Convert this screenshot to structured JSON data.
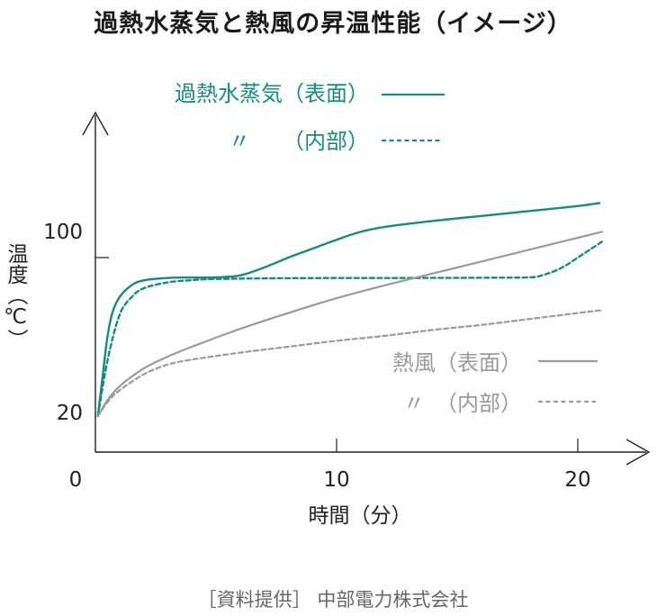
{
  "chart_data": {
    "type": "line",
    "title": "過熱水蒸気と熱風の昇温性能（イメージ）",
    "source": "［資料提供］ 中部電力株式会社",
    "xlabel": "時間（分）",
    "ylabel": "温度（℃）",
    "x_ticks": [
      "0",
      "10",
      "20"
    ],
    "y_ticks": [
      "20",
      "100"
    ],
    "xlim": [
      0,
      21
    ],
    "ylim": [
      16,
      138
    ],
    "colors": {
      "steam": "#188a80",
      "hot_air": "#9a9a9a",
      "axis": "#222222"
    },
    "series": [
      {
        "name": "過熱水蒸気（表面）",
        "style": "solid",
        "color": "#188a80",
        "points": [
          [
            0.1,
            20
          ],
          [
            0.3,
            40
          ],
          [
            0.5,
            60
          ],
          [
            0.7,
            72
          ],
          [
            1,
            80
          ],
          [
            1.5,
            86
          ],
          [
            2,
            88.5
          ],
          [
            3,
            89.7
          ],
          [
            4,
            89.9
          ],
          [
            5,
            90
          ],
          [
            6,
            91
          ],
          [
            7,
            95
          ],
          [
            8,
            100
          ],
          [
            9,
            104.5
          ],
          [
            10,
            109
          ],
          [
            11,
            113
          ],
          [
            12,
            115.5
          ],
          [
            14,
            118.5
          ],
          [
            16,
            121
          ],
          [
            18,
            123.5
          ],
          [
            20,
            126
          ],
          [
            20.9,
            127.5
          ]
        ]
      },
      {
        "name": "〃　　（内部）",
        "style": "dashed",
        "color": "#188a80",
        "points": [
          [
            0.1,
            20
          ],
          [
            0.5,
            48
          ],
          [
            1,
            71
          ],
          [
            1.5,
            80
          ],
          [
            2,
            84.5
          ],
          [
            3,
            87.5
          ],
          [
            4,
            88.6
          ],
          [
            5,
            89.2
          ],
          [
            8,
            89.6
          ],
          [
            12,
            89.7
          ],
          [
            16,
            89.8
          ],
          [
            18,
            90
          ],
          [
            18.5,
            91
          ],
          [
            19,
            93
          ],
          [
            19.5,
            96
          ],
          [
            20,
            100
          ],
          [
            20.5,
            104
          ],
          [
            21,
            108
          ]
        ]
      },
      {
        "name": "熱風（表面）",
        "style": "solid",
        "color": "#9a9a9a",
        "points": [
          [
            0.1,
            20
          ],
          [
            0.5,
            28
          ],
          [
            1,
            35
          ],
          [
            2,
            44
          ],
          [
            3,
            50
          ],
          [
            4,
            55
          ],
          [
            6,
            64
          ],
          [
            8,
            72
          ],
          [
            10,
            79.5
          ],
          [
            12,
            86
          ],
          [
            14,
            92
          ],
          [
            16,
            98
          ],
          [
            18,
            104
          ],
          [
            20,
            110
          ],
          [
            21,
            113
          ]
        ]
      },
      {
        "name": "〃　（内部）",
        "style": "dashed",
        "color": "#9a9a9a",
        "points": [
          [
            0.1,
            20
          ],
          [
            0.5,
            27
          ],
          [
            1,
            33
          ],
          [
            2,
            41
          ],
          [
            3,
            46
          ],
          [
            4,
            48.5
          ],
          [
            6,
            52
          ],
          [
            8,
            55
          ],
          [
            10,
            58
          ],
          [
            12,
            60.5
          ],
          [
            14,
            63.5
          ],
          [
            16,
            66
          ],
          [
            18,
            69
          ],
          [
            20,
            72
          ],
          [
            21,
            73.5
          ]
        ]
      }
    ]
  }
}
